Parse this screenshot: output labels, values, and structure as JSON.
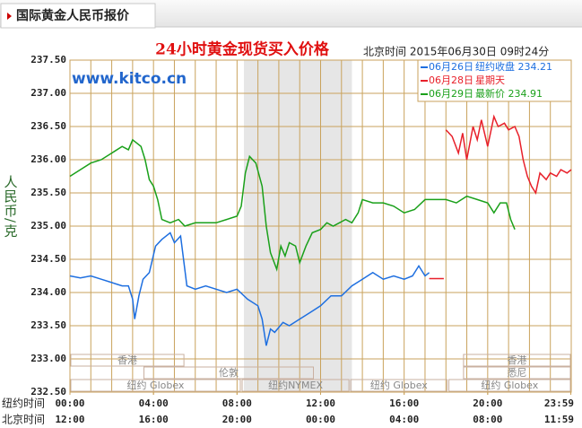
{
  "header": {
    "title": "国际黄金人民币报价"
  },
  "chart_data": {
    "type": "line",
    "title": "24小时黄金现货买入价格",
    "subtitle": "北京时间  2015年06月30日 09时24分",
    "watermark": "www.kitco.cn",
    "ylabel": "人民币/克",
    "ylim": [
      232.5,
      237.5
    ],
    "yticks": [
      {
        "value": 232.5,
        "label": "232.50"
      },
      {
        "value": 233,
        "label": "233.00"
      },
      {
        "value": 233.5,
        "label": "233.50"
      },
      {
        "value": 234,
        "label": "234.00"
      },
      {
        "value": 234.5,
        "label": "234.50"
      },
      {
        "value": 235,
        "label": "235.00"
      },
      {
        "value": 235.5,
        "label": "235.50"
      },
      {
        "value": 236,
        "label": "236.00"
      },
      {
        "value": 236.5,
        "label": "236.50"
      },
      {
        "value": 237,
        "label": "237.00"
      },
      {
        "value": 237.5,
        "label": "237.50"
      }
    ],
    "xlim": [
      0,
      24
    ],
    "xgrid": [
      0,
      1,
      2,
      3,
      4,
      5,
      6,
      7,
      8,
      9,
      10,
      11,
      12,
      13,
      14,
      15,
      16,
      17,
      18,
      19,
      20,
      21,
      22,
      23,
      24
    ],
    "xrow_titles": [
      "纽约时间",
      "北京时间"
    ],
    "xticks": [
      {
        "value": 0,
        "label": "00:00"
      },
      {
        "value": 4,
        "label": "04:00"
      },
      {
        "value": 8,
        "label": "08:00"
      },
      {
        "value": 12,
        "label": "12:00"
      },
      {
        "value": 16,
        "label": "16:00"
      },
      {
        "value": 20,
        "label": "20:00"
      },
      {
        "value": 23.98,
        "label": "23:59"
      }
    ],
    "x2ticks": [
      {
        "value": 0,
        "label": "12:00"
      },
      {
        "value": 4,
        "label": "16:00"
      },
      {
        "value": 8,
        "label": "20:00"
      },
      {
        "value": 12,
        "label": "00:00"
      },
      {
        "value": 16,
        "label": "04:00"
      },
      {
        "value": 20,
        "label": "08:00"
      },
      {
        "value": 23.98,
        "label": "11:59"
      }
    ],
    "shaded": [
      8.33,
      13.5
    ],
    "grid": true,
    "sessions": [
      [
        {
          "label": "香港",
          "start": 0,
          "end": 5.5
        },
        {
          "label": "香港",
          "start": 18.8,
          "end": 24
        }
      ],
      [
        {
          "label": "伦敦",
          "start": 3.5,
          "end": 11.7
        },
        {
          "label": "悉尼",
          "start": 18.8,
          "end": 24
        }
      ],
      [
        {
          "label": "纽约 Globex",
          "start": 0,
          "end": 8.2
        },
        {
          "label": "纽约NYMEX",
          "start": 8.2,
          "end": 13.4
        },
        {
          "label": "纽约 Globex",
          "start": 13.4,
          "end": 18.1
        },
        {
          "label": "纽约 Globex",
          "start": 18.1,
          "end": 24
        }
      ]
    ],
    "series": [
      {
        "name": "06月26日",
        "note": "纽约收盘 234.21",
        "color": "#1e6fe0",
        "x": [
          0,
          0.5,
          1,
          1.5,
          2,
          2.5,
          2.8,
          3.0,
          3.1,
          3.3,
          3.5,
          3.8,
          4.1,
          4.4,
          4.8,
          5.0,
          5.3,
          5.6,
          6.0,
          6.5,
          7.0,
          7.5,
          8.0,
          8.5,
          9.0,
          9.2,
          9.4,
          9.6,
          9.8,
          10.2,
          10.5,
          11.0,
          11.5,
          12.0,
          12.5,
          13.0,
          13.5,
          14.0,
          14.5,
          15.0,
          15.5,
          16.0,
          16.4,
          16.7,
          17.0,
          17.2
        ],
        "values": [
          234.25,
          234.22,
          234.25,
          234.2,
          234.15,
          234.1,
          234.1,
          233.9,
          233.6,
          233.95,
          234.2,
          234.3,
          234.7,
          234.8,
          234.9,
          234.75,
          234.85,
          234.1,
          234.05,
          234.1,
          234.05,
          234.0,
          234.05,
          233.9,
          233.8,
          233.6,
          233.2,
          233.45,
          233.4,
          233.55,
          233.5,
          233.6,
          233.7,
          233.8,
          233.95,
          233.95,
          234.1,
          234.2,
          234.3,
          234.2,
          234.25,
          234.2,
          234.25,
          234.4,
          234.25,
          234.3
        ]
      },
      {
        "name": "06月28日",
        "note": "星期天",
        "color": "#e8202a",
        "x": [
          17.2,
          17.9,
          17.95,
          18.0,
          18.3,
          18.6,
          18.8,
          19.0,
          19.3,
          19.5,
          19.7,
          20.0,
          20.3,
          20.5,
          20.8,
          21.0,
          21.3,
          21.5,
          21.7,
          21.9,
          22.1,
          22.3,
          22.5,
          22.8,
          23.0,
          23.3,
          23.5,
          23.8,
          24
        ],
        "values": [
          234.21,
          234.21,
          null,
          236.45,
          236.35,
          236.1,
          236.4,
          236.0,
          236.5,
          236.3,
          236.6,
          236.2,
          236.65,
          236.5,
          236.55,
          236.45,
          236.5,
          236.35,
          236.0,
          235.75,
          235.6,
          235.5,
          235.8,
          235.7,
          235.8,
          235.75,
          235.85,
          235.8,
          235.85
        ]
      },
      {
        "name": "06月29日",
        "note": "最新价 234.91",
        "color": "#1aa01a",
        "x": [
          0,
          0.5,
          1,
          1.5,
          2,
          2.5,
          2.8,
          3.0,
          3.4,
          3.6,
          3.8,
          4.0,
          4.2,
          4.4,
          4.8,
          5.2,
          5.5,
          6.0,
          6.5,
          7.0,
          7.5,
          8.0,
          8.2,
          8.4,
          8.6,
          8.9,
          9.2,
          9.4,
          9.6,
          9.9,
          10.1,
          10.3,
          10.5,
          10.8,
          11.0,
          11.3,
          11.6,
          12.0,
          12.3,
          12.6,
          12.9,
          13.2,
          13.5,
          13.8,
          14.0,
          14.5,
          15.0,
          15.5,
          16.0,
          16.5,
          17.0,
          17.5,
          18.0,
          18.5,
          19.0,
          19.5,
          20.0,
          20.3,
          20.6,
          20.9,
          21.1,
          21.3
        ],
        "values": [
          235.75,
          235.85,
          235.95,
          236.0,
          236.1,
          236.2,
          236.15,
          236.3,
          236.2,
          236.0,
          235.7,
          235.6,
          235.4,
          235.1,
          235.05,
          235.1,
          235.0,
          235.05,
          235.05,
          235.05,
          235.1,
          235.15,
          235.3,
          235.8,
          236.05,
          235.95,
          235.6,
          235.0,
          234.6,
          234.35,
          234.7,
          234.55,
          234.75,
          234.7,
          234.45,
          234.7,
          234.9,
          234.95,
          235.05,
          235.0,
          235.05,
          235.1,
          235.05,
          235.2,
          235.4,
          235.35,
          235.35,
          235.3,
          235.2,
          235.25,
          235.4,
          235.4,
          235.4,
          235.35,
          235.45,
          235.4,
          235.35,
          235.2,
          235.35,
          235.35,
          235.1,
          234.95
        ]
      }
    ]
  }
}
